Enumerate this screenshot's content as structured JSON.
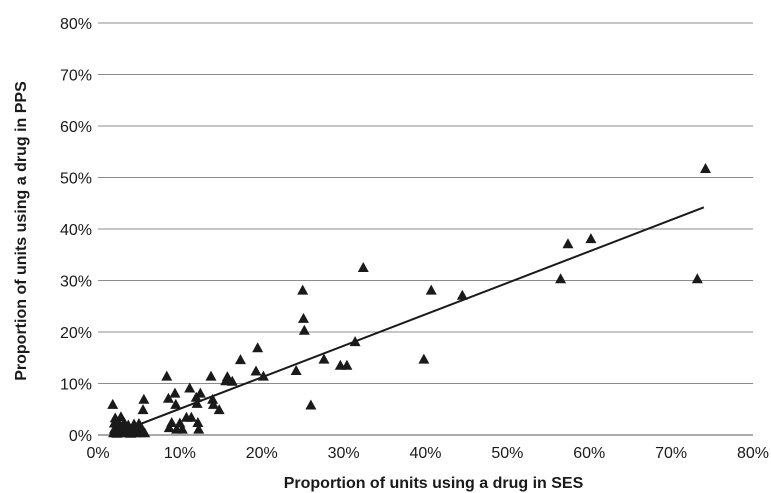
{
  "chart_data": {
    "type": "scatter",
    "xlabel": "Proportion of units using a drug in SES",
    "ylabel": "Proportion of units using a drug in PPS",
    "xlim": [
      0,
      80
    ],
    "ylim": [
      0,
      80
    ],
    "x_ticks": [
      "0%",
      "10%",
      "20%",
      "30%",
      "40%",
      "50%",
      "60%",
      "70%",
      "80%"
    ],
    "y_ticks": [
      "0%",
      "10%",
      "20%",
      "30%",
      "40%",
      "50%",
      "60%",
      "70%",
      "80%"
    ],
    "grid": "horizontal",
    "legend": "none",
    "marker": "triangle",
    "colors": {
      "marker": "#1a1a1a",
      "grid": "#8c8c8c",
      "axis": "#555555"
    },
    "series": [
      {
        "points": [
          [
            1.8,
            5.8
          ],
          [
            1.9,
            0.3
          ],
          [
            2.0,
            1.0
          ],
          [
            2.0,
            2.2
          ],
          [
            2.1,
            3.2
          ],
          [
            2.3,
            0.2
          ],
          [
            2.5,
            0.8
          ],
          [
            2.6,
            2.0
          ],
          [
            2.8,
            3.4
          ],
          [
            2.9,
            0.3
          ],
          [
            3.0,
            1.2
          ],
          [
            3.2,
            2.3
          ],
          [
            3.4,
            0.3
          ],
          [
            3.6,
            1.0
          ],
          [
            3.7,
            1.8
          ],
          [
            4.0,
            0.2
          ],
          [
            4.2,
            1.2
          ],
          [
            4.4,
            2.0
          ],
          [
            4.6,
            0.3
          ],
          [
            4.8,
            1.2
          ],
          [
            5.0,
            2.1
          ],
          [
            5.2,
            0.3
          ],
          [
            5.4,
            1.0
          ],
          [
            5.5,
            4.8
          ],
          [
            5.6,
            6.8
          ],
          [
            5.7,
            0.3
          ],
          [
            8.4,
            11.3
          ],
          [
            8.6,
            7.0
          ],
          [
            8.7,
            1.3
          ],
          [
            9.0,
            2.3
          ],
          [
            9.4,
            8.0
          ],
          [
            9.5,
            5.8
          ],
          [
            9.6,
            1.0
          ],
          [
            10.0,
            2.2
          ],
          [
            10.3,
            1.0
          ],
          [
            10.8,
            3.3
          ],
          [
            11.2,
            9.0
          ],
          [
            11.4,
            3.3
          ],
          [
            12.0,
            7.2
          ],
          [
            12.1,
            6.0
          ],
          [
            12.2,
            2.3
          ],
          [
            12.3,
            1.0
          ],
          [
            12.5,
            8.0
          ],
          [
            13.8,
            11.3
          ],
          [
            14.0,
            6.8
          ],
          [
            14.1,
            5.8
          ],
          [
            14.8,
            4.8
          ],
          [
            15.6,
            10.4
          ],
          [
            15.8,
            11.2
          ],
          [
            16.4,
            10.3
          ],
          [
            17.4,
            14.5
          ],
          [
            19.3,
            12.3
          ],
          [
            19.5,
            16.8
          ],
          [
            20.2,
            11.3
          ],
          [
            24.2,
            12.4
          ],
          [
            25.0,
            28.0
          ],
          [
            25.1,
            22.5
          ],
          [
            25.2,
            20.2
          ],
          [
            26.0,
            5.7
          ],
          [
            27.6,
            14.6
          ],
          [
            29.6,
            13.4
          ],
          [
            30.4,
            13.4
          ],
          [
            31.4,
            18.0
          ],
          [
            32.4,
            32.4
          ],
          [
            39.8,
            14.6
          ],
          [
            40.7,
            28.0
          ],
          [
            44.5,
            27.0
          ],
          [
            56.5,
            30.2
          ],
          [
            57.4,
            37.0
          ],
          [
            60.2,
            38.0
          ],
          [
            73.2,
            30.2
          ],
          [
            74.2,
            51.6
          ]
        ]
      }
    ],
    "trendline": {
      "from": [
        2.0,
        0.2
      ],
      "to": [
        74.0,
        44.2
      ]
    }
  }
}
